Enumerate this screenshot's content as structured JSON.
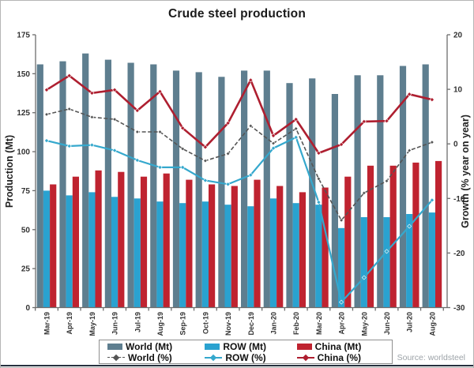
{
  "page": {
    "title": "Crude steel production",
    "source": "Source: worldsteel"
  },
  "legend": {
    "items": [
      {
        "label": "World (Mt)",
        "type": "bar",
        "color": "#5e7e8f"
      },
      {
        "label": "ROW (Mt)",
        "type": "bar",
        "color": "#2aa2d0"
      },
      {
        "label": "China (Mt)",
        "type": "bar",
        "color": "#bf2330"
      },
      {
        "label": "World (%)",
        "type": "line",
        "dash": true,
        "color": "#555555"
      },
      {
        "label": "ROW (%)",
        "type": "line",
        "dash": false,
        "color": "#35a8cd"
      },
      {
        "label": "China (%)",
        "type": "line",
        "dash": false,
        "color": "#ae1f30"
      }
    ]
  },
  "chart_data": {
    "type": "bar",
    "subtype": "grouped bars with overlaid lines, dual y-axis",
    "title": "Crude steel production",
    "source": "Source: worldsteel",
    "categories": [
      "Mar-19",
      "Apr-19",
      "May-19",
      "Jun-19",
      "Jul-19",
      "Aug-19",
      "Sep-19",
      "Oct-19",
      "Nov-19",
      "Dec-19",
      "Jan-20",
      "Feb-20",
      "Mar-20",
      "Apr-20",
      "May-20",
      "Jun-20",
      "Jul-20",
      "Aug-20"
    ],
    "bar_series": [
      {
        "name": "World (Mt)",
        "axis": "left",
        "color": "#5e7e8f",
        "values": [
          156,
          158,
          163,
          159,
          157,
          156,
          152,
          151,
          148,
          152,
          152,
          144,
          147,
          137,
          149,
          149,
          155,
          156
        ]
      },
      {
        "name": "ROW (Mt)",
        "axis": "left",
        "color": "#2aa2d0",
        "values": [
          75,
          72,
          74,
          71,
          70,
          68,
          67,
          68,
          66,
          65,
          70,
          67,
          66,
          51,
          58,
          58,
          60,
          61
        ]
      },
      {
        "name": "China (Mt)",
        "axis": "left",
        "color": "#bf2330",
        "values": [
          79,
          84,
          88,
          87,
          84,
          86,
          82,
          79,
          78,
          82,
          78,
          74,
          77,
          84,
          91,
          91,
          93,
          94
        ]
      }
    ],
    "line_series": [
      {
        "name": "World (%)",
        "axis": "right",
        "color": "#555555",
        "dash": true,
        "width": 1.6,
        "marker": 4.6,
        "values": [
          5.4,
          6.4,
          4.9,
          4.5,
          2.2,
          2.2,
          -0.9,
          -3.1,
          -1.8,
          3.3,
          0.1,
          2.8,
          -6.4,
          -14.0,
          -9.0,
          -6.8,
          -1.2,
          0.3
        ]
      },
      {
        "name": "ROW (%)",
        "axis": "right",
        "color": "#35a8cd",
        "dash": false,
        "width": 2.2,
        "marker": 5.2,
        "values": [
          0.6,
          -0.4,
          -0.2,
          -1.2,
          -3.0,
          -4.3,
          -4.3,
          -6.7,
          -7.4,
          -5.7,
          -0.8,
          1.2,
          -10.7,
          -29.0,
          -24.5,
          -19.7,
          -15.1,
          -10.3
        ]
      },
      {
        "name": "China (%)",
        "axis": "right",
        "color": "#ae1f30",
        "dash": false,
        "width": 2.6,
        "marker": 5.2,
        "values": [
          9.9,
          12.5,
          9.3,
          9.9,
          6.1,
          9.6,
          2.9,
          -0.6,
          3.8,
          11.7,
          1.5,
          4.5,
          -1.7,
          -0.1,
          4.1,
          4.2,
          9.1,
          8.1
        ]
      }
    ],
    "left_axis": {
      "label": "Production (Mt)",
      "min": 0,
      "max": 175,
      "ticks": [
        0,
        25,
        50,
        75,
        100,
        125,
        150,
        175
      ]
    },
    "right_axis": {
      "label": "Growth (% year on year)",
      "min": -30,
      "max": 20,
      "ticks": [
        -30,
        -20,
        -10,
        0,
        10,
        20
      ]
    },
    "grid": false,
    "legend_position": "bottom"
  }
}
